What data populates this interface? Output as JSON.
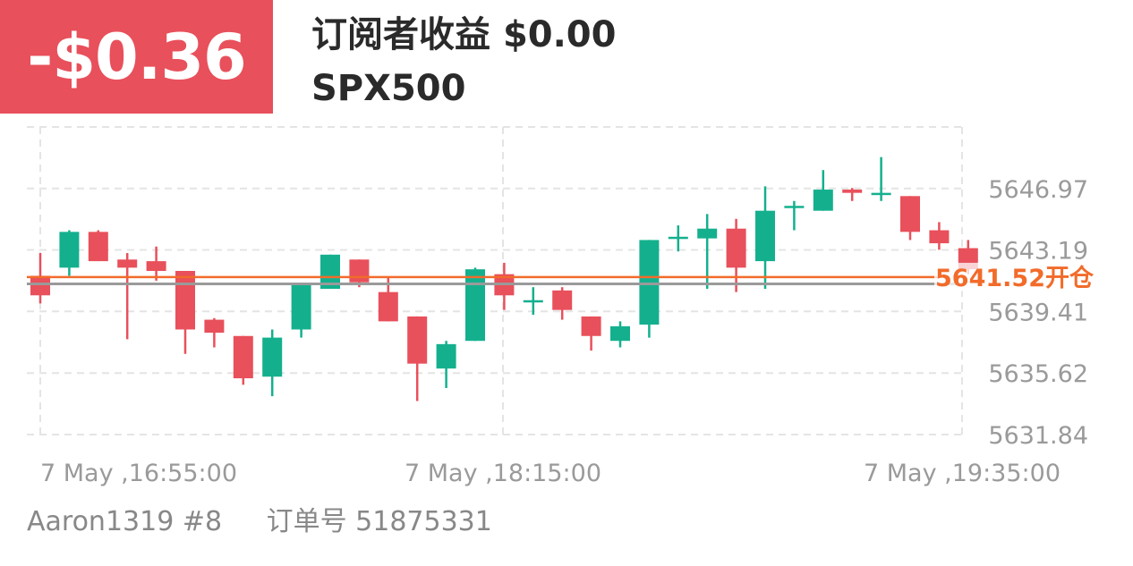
{
  "header": {
    "pnl": "-$0.36",
    "subscriber_label": "订阅者收益",
    "subscriber_value": "$0.00",
    "symbol": "SPX500"
  },
  "footer": {
    "account": "Aaron1319 #8",
    "order_label": "订单号",
    "order_number": "51875331"
  },
  "colors": {
    "pnl_bg": "#e8505b",
    "up": "#14b08e",
    "down": "#e8505b",
    "open_line": "#f26b2a",
    "current_line": "#9a9a9a",
    "grid": "#e4e4e4"
  },
  "chart_data": {
    "type": "candlestick",
    "symbol": "SPX500",
    "x_ticks": [
      "7 May ,16:55:00",
      "7 May ,18:15:00",
      "7 May ,19:35:00"
    ],
    "y_ticks": [
      5646.97,
      5643.19,
      5639.41,
      5635.62,
      5631.84
    ],
    "ylim": [
      5631.84,
      5650.75
    ],
    "grid": true,
    "open_price_line": {
      "value": 5641.52,
      "label": "5641.52开仓"
    },
    "current_price_line": {
      "value": 5641.1
    },
    "candles": [
      {
        "open": 5641.6,
        "high": 5643.0,
        "low": 5639.9,
        "close": 5640.4
      },
      {
        "open": 5642.1,
        "high": 5644.4,
        "low": 5641.6,
        "close": 5644.3
      },
      {
        "open": 5644.3,
        "high": 5644.4,
        "low": 5642.5,
        "close": 5642.5
      },
      {
        "open": 5642.6,
        "high": 5643.0,
        "low": 5637.7,
        "close": 5642.1
      },
      {
        "open": 5642.5,
        "high": 5643.4,
        "low": 5641.3,
        "close": 5641.9
      },
      {
        "open": 5641.9,
        "high": 5641.9,
        "low": 5636.8,
        "close": 5638.3
      },
      {
        "open": 5638.9,
        "high": 5639.0,
        "low": 5637.2,
        "close": 5638.1
      },
      {
        "open": 5637.9,
        "high": 5637.9,
        "low": 5634.9,
        "close": 5635.3
      },
      {
        "open": 5635.4,
        "high": 5638.3,
        "low": 5634.2,
        "close": 5637.8
      },
      {
        "open": 5638.3,
        "high": 5641.1,
        "low": 5637.8,
        "close": 5641.1
      },
      {
        "open": 5640.8,
        "high": 5642.9,
        "low": 5640.8,
        "close": 5642.9
      },
      {
        "open": 5642.6,
        "high": 5642.6,
        "low": 5640.9,
        "close": 5641.2
      },
      {
        "open": 5640.6,
        "high": 5641.5,
        "low": 5638.8,
        "close": 5638.8
      },
      {
        "open": 5639.1,
        "high": 5639.1,
        "low": 5633.9,
        "close": 5636.2
      },
      {
        "open": 5635.9,
        "high": 5637.6,
        "low": 5634.7,
        "close": 5637.4
      },
      {
        "open": 5637.6,
        "high": 5642.1,
        "low": 5637.6,
        "close": 5642.0
      },
      {
        "open": 5641.7,
        "high": 5642.4,
        "low": 5639.5,
        "close": 5640.4
      },
      {
        "open": 5640.0,
        "high": 5640.9,
        "low": 5639.2,
        "close": 5640.1
      },
      {
        "open": 5640.7,
        "high": 5640.9,
        "low": 5638.9,
        "close": 5639.5
      },
      {
        "open": 5639.1,
        "high": 5639.1,
        "low": 5637.0,
        "close": 5637.9
      },
      {
        "open": 5637.6,
        "high": 5638.8,
        "low": 5637.2,
        "close": 5638.5
      },
      {
        "open": 5638.6,
        "high": 5643.8,
        "low": 5637.8,
        "close": 5643.8
      },
      {
        "open": 5644.0,
        "high": 5644.7,
        "low": 5643.1,
        "close": 5644.0
      },
      {
        "open": 5643.9,
        "high": 5645.4,
        "low": 5640.8,
        "close": 5644.5
      },
      {
        "open": 5644.5,
        "high": 5645.1,
        "low": 5640.6,
        "close": 5642.1
      },
      {
        "open": 5642.5,
        "high": 5647.1,
        "low": 5640.8,
        "close": 5645.6
      },
      {
        "open": 5645.8,
        "high": 5646.2,
        "low": 5644.4,
        "close": 5645.9
      },
      {
        "open": 5645.6,
        "high": 5648.1,
        "low": 5645.6,
        "close": 5646.9
      },
      {
        "open": 5646.9,
        "high": 5647.0,
        "low": 5646.2,
        "close": 5646.7
      },
      {
        "open": 5646.7,
        "high": 5648.9,
        "low": 5646.2,
        "close": 5646.7
      },
      {
        "open": 5646.5,
        "high": 5646.5,
        "low": 5643.8,
        "close": 5644.3
      },
      {
        "open": 5644.4,
        "high": 5644.9,
        "low": 5643.2,
        "close": 5643.6
      },
      {
        "open": 5643.3,
        "high": 5643.8,
        "low": 5641.7,
        "close": 5642.0
      }
    ]
  }
}
